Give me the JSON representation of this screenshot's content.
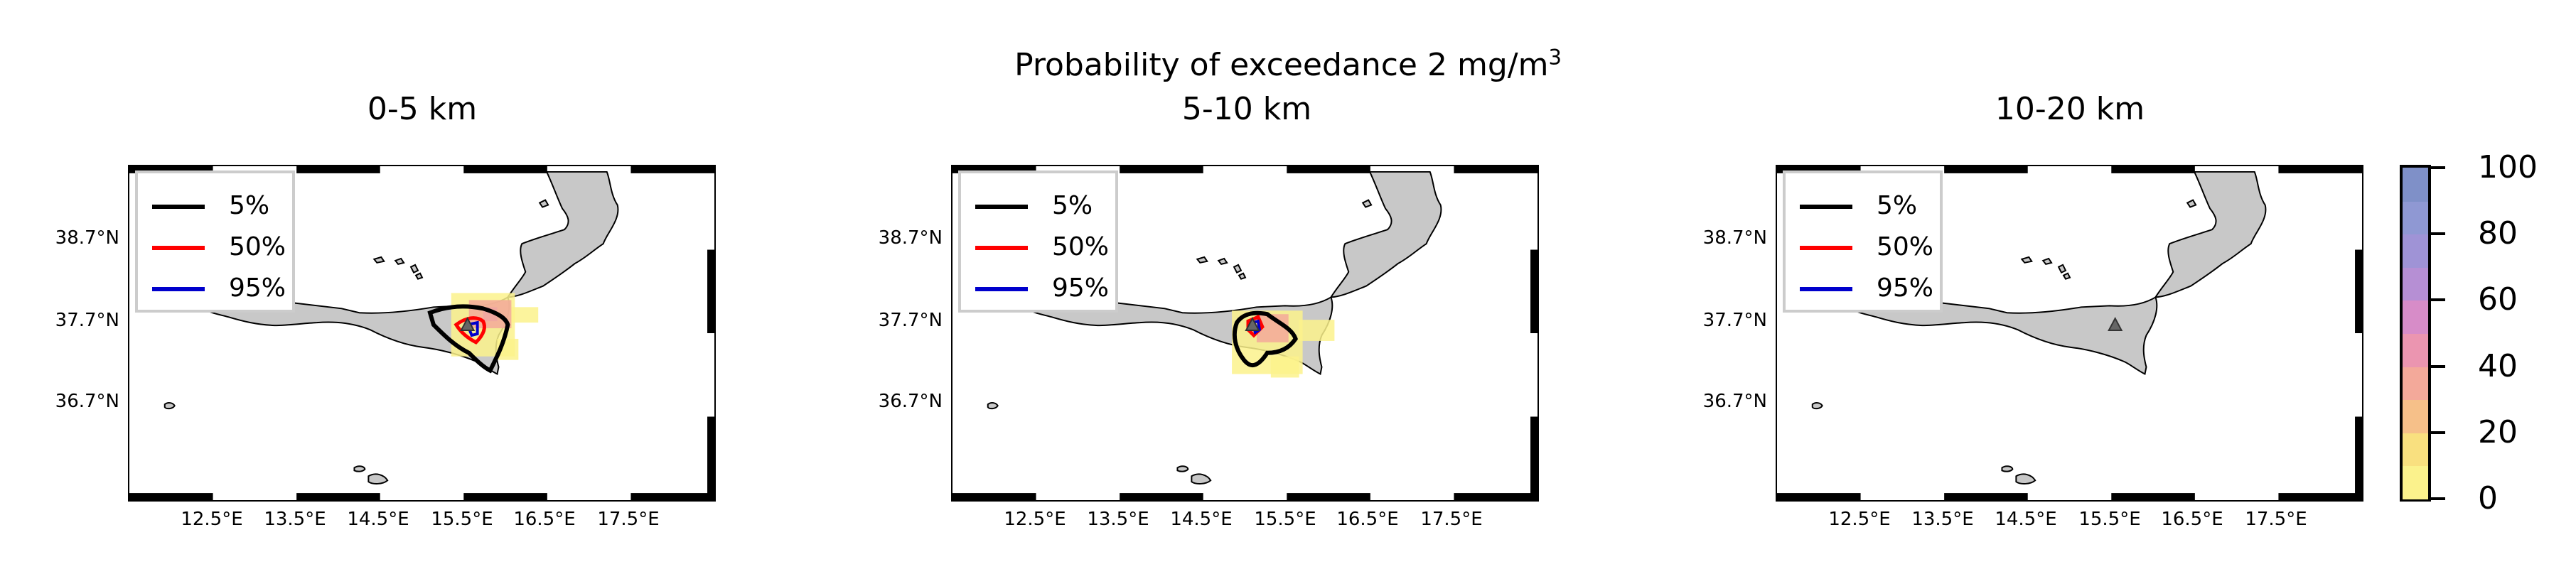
{
  "figure": {
    "title_main": "Probability of exceedance 2 mg/m",
    "title_sup": "3"
  },
  "panels": [
    {
      "subtitle": "0-5 km"
    },
    {
      "subtitle": "5-10 km"
    },
    {
      "subtitle": "10-20 km"
    }
  ],
  "legend": {
    "items": [
      {
        "label": "5%",
        "color": "#000000"
      },
      {
        "label": "50%",
        "color": "#ff0000"
      },
      {
        "label": "95%",
        "color": "#0000cc"
      }
    ]
  },
  "axes": {
    "lat_labels": [
      "38.7°N",
      "37.7°N",
      "36.7°N"
    ],
    "lon_labels": [
      "12.5°E",
      "13.5°E",
      "14.5°E",
      "15.5°E",
      "16.5°E",
      "17.5°E"
    ]
  },
  "colorbar": {
    "ticks": [
      "100",
      "80",
      "60",
      "40",
      "20",
      "0"
    ],
    "min": 0,
    "max": 100,
    "colors": [
      "#fbf28c",
      "#f9e07f",
      "#f6c089",
      "#f3a99a",
      "#eb95b0",
      "#d78cc8",
      "#b68fd4",
      "#9f93d6",
      "#8f98d3",
      "#7f90c8"
    ]
  },
  "colors": {
    "land": "#c8c8c8",
    "prob_low": "#fbf28c",
    "prob_mid": "#f3a99a",
    "prob_high": "#d78cc8"
  },
  "icons": {
    "volcano": "triangle-marker-icon"
  }
}
